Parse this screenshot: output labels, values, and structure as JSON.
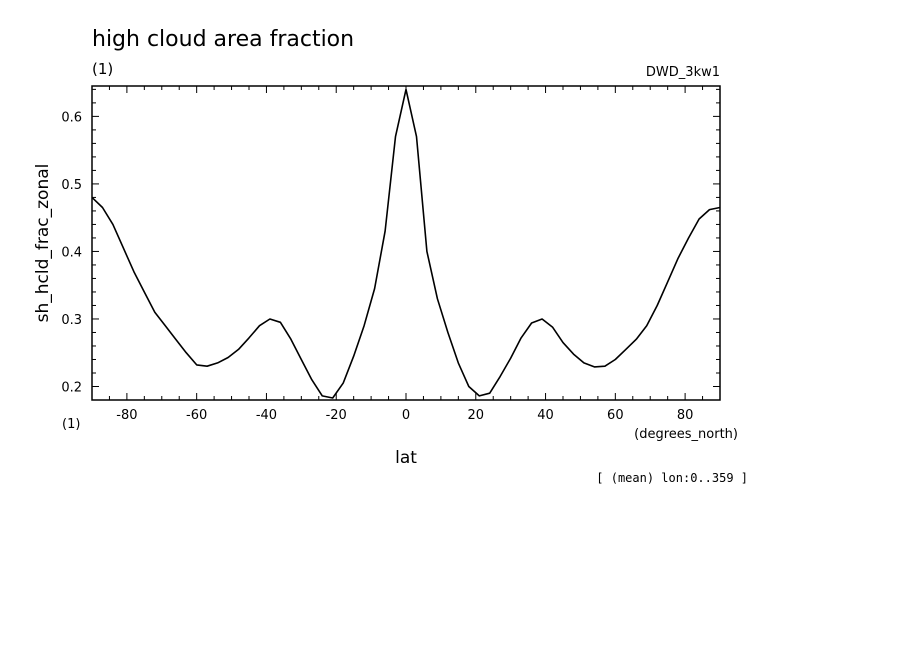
{
  "header": {
    "title": "high cloud area fraction",
    "units": "(1)",
    "dataset": "DWD_3kw1"
  },
  "footer": {
    "y_units_note": "(1)",
    "x_units": "(degrees_north)",
    "mean_note": "[ (mean) lon:0..359 ]"
  },
  "chart_data": {
    "type": "line",
    "title": "high cloud area fraction",
    "xlabel": "lat",
    "ylabel": "sh_hcld_frac_zonal",
    "xlim": [
      -90,
      90
    ],
    "ylim": [
      0.18,
      0.645
    ],
    "x_ticks": [
      -80,
      -60,
      -40,
      -20,
      0,
      20,
      40,
      60,
      80
    ],
    "x_tick_labels": [
      "-80",
      "-60",
      "-40",
      "-20",
      "0",
      "20",
      "40",
      "60",
      "80"
    ],
    "y_ticks": [
      0.2,
      0.3,
      0.4,
      0.5,
      0.6
    ],
    "y_tick_labels": [
      "0.2",
      "0.3",
      "0.4",
      "0.5",
      "0.6"
    ],
    "grid": false,
    "series": [
      {
        "color": "#000000",
        "x": [
          -90,
          -87,
          -84,
          -81,
          -78,
          -75,
          -72,
          -69,
          -66,
          -63,
          -60,
          -57,
          -54,
          -51,
          -48,
          -45,
          -42,
          -39,
          -36,
          -33,
          -30,
          -27,
          -24,
          -21,
          -18,
          -15,
          -12,
          -9,
          -6,
          -3,
          0,
          3,
          6,
          9,
          12,
          15,
          18,
          21,
          24,
          27,
          30,
          33,
          36,
          39,
          42,
          45,
          48,
          51,
          54,
          57,
          60,
          63,
          66,
          69,
          72,
          75,
          78,
          81,
          84,
          87,
          90
        ],
        "y": [
          0.48,
          0.465,
          0.44,
          0.405,
          0.37,
          0.34,
          0.31,
          0.29,
          0.27,
          0.25,
          0.232,
          0.23,
          0.235,
          0.243,
          0.255,
          0.272,
          0.29,
          0.3,
          0.295,
          0.27,
          0.24,
          0.21,
          0.186,
          0.183,
          0.205,
          0.245,
          0.29,
          0.345,
          0.43,
          0.57,
          0.64,
          0.57,
          0.4,
          0.33,
          0.28,
          0.235,
          0.2,
          0.186,
          0.19,
          0.215,
          0.242,
          0.272,
          0.294,
          0.3,
          0.288,
          0.265,
          0.248,
          0.235,
          0.229,
          0.23,
          0.24,
          0.255,
          0.27,
          0.29,
          0.32,
          0.355,
          0.39,
          0.42,
          0.448,
          0.462,
          0.465
        ]
      }
    ]
  }
}
